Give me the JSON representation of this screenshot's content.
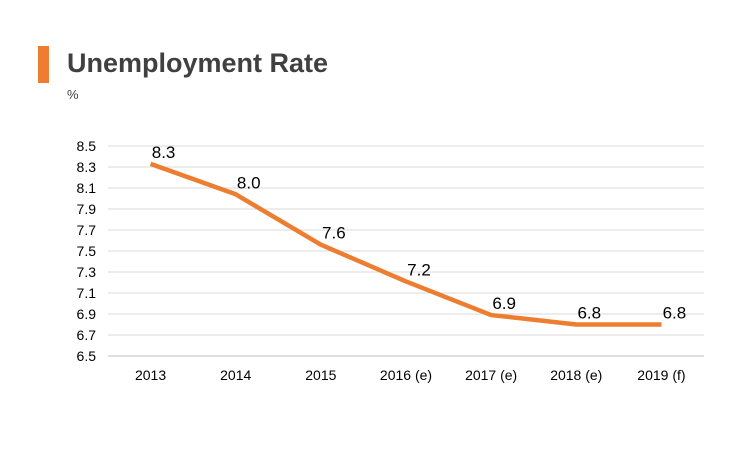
{
  "header": {
    "title": "Unemployment Rate",
    "unit": "%",
    "accent_color": "#ED7D31"
  },
  "chart_data": {
    "type": "line",
    "title": "Unemployment Rate",
    "ylabel": "%",
    "xlabel": "",
    "categories": [
      "2013",
      "2014",
      "2015",
      "2016 (e)",
      "2017 (e)",
      "2018 (e)",
      "2019 (f)"
    ],
    "series": [
      {
        "name": "Unemployment Rate",
        "color": "#ED7D31",
        "values": [
          8.33,
          8.04,
          7.56,
          7.21,
          6.89,
          6.8,
          6.8
        ],
        "labels": [
          "8.3",
          "8.0",
          "7.6",
          "7.2",
          "6.9",
          "6.8",
          "6.8"
        ]
      }
    ],
    "ylim": [
      6.5,
      8.5
    ],
    "yticks": [
      "6.5",
      "6.7",
      "6.9",
      "7.1",
      "7.3",
      "7.5",
      "7.7",
      "7.9",
      "8.1",
      "8.3",
      "8.5"
    ],
    "grid": true,
    "legend": "none"
  }
}
